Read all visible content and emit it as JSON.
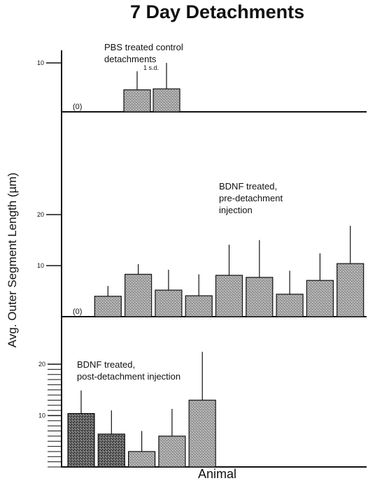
{
  "chart_data": {
    "type": "bar",
    "title": "7 Day Detachments",
    "xlabel": "Animal",
    "ylabel": "Avg. Outer Segment Length (µm)",
    "error_bar_note": "1 s.d.",
    "grid": false,
    "panels": [
      {
        "annotation": [
          "PBS treated control",
          "detachments"
        ],
        "zero_label": "(0)",
        "ylim": [
          0,
          10
        ],
        "yticks": [
          10
        ],
        "values": [
          0,
          4.5,
          4.7
        ],
        "errors": [
          0,
          3.8,
          5.3
        ]
      },
      {
        "annotation": [
          "BDNF treated,",
          "pre-detachment",
          "injection"
        ],
        "zero_label": "(0)",
        "ylim": [
          0,
          20
        ],
        "yticks": [
          10,
          20
        ],
        "values": [
          0,
          4.0,
          8.3,
          5.2,
          4.1,
          8.1,
          7.7,
          4.4,
          7.1,
          10.4
        ],
        "errors": [
          0,
          2.0,
          2.0,
          4.0,
          4.2,
          6.0,
          7.3,
          4.6,
          5.3,
          7.4
        ]
      },
      {
        "annotation": [
          "BDNF treated,",
          "post-detachment injection"
        ],
        "ylim": [
          0,
          20
        ],
        "yticks": [
          10,
          20
        ],
        "values": [
          10.4,
          6.4,
          3.0,
          6.0,
          13.0
        ],
        "errors": [
          4.5,
          4.6,
          4.0,
          5.3,
          9.4
        ]
      }
    ]
  }
}
